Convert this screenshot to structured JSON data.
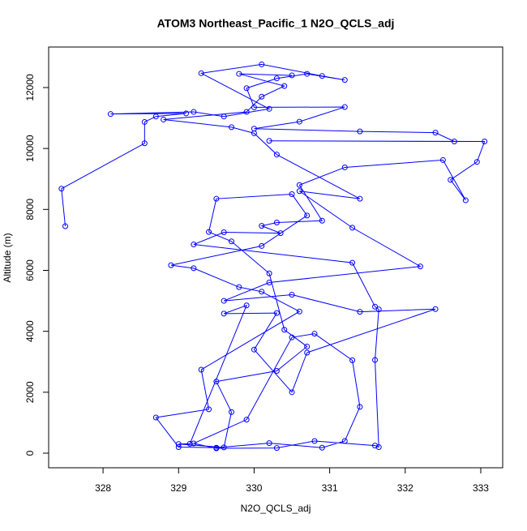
{
  "chart_data": {
    "type": "line",
    "title": "ATOM3 Northeast_Pacific_1 N2O_QCLS_adj",
    "x_label": "N2O_QCLS_adj",
    "y_label": "Altitude (m)",
    "color": "#0000ff",
    "markers": true,
    "x": [
      327.5,
      327.45,
      328.55,
      328.55,
      328.7,
      329.1,
      328.1,
      329.2,
      329.6,
      330.2,
      329.3,
      330.1,
      330.9,
      331.2,
      330.7,
      330.3,
      329.9,
      330.0,
      331.2,
      330.6,
      330.0,
      331.4,
      332.4,
      332.65,
      330.2,
      333.05,
      332.95,
      332.6,
      332.8,
      332.5,
      331.2,
      330.6,
      330.9,
      330.3,
      330.1,
      330.35,
      329.6,
      329.2,
      331.3,
      331.6,
      331.65,
      331.6,
      331.65,
      331.6,
      330.8,
      330.3,
      329.5,
      329.2,
      329.9,
      330.5,
      330.8,
      331.3,
      331.4,
      331.2,
      330.9,
      330.2,
      329.5,
      329.0,
      328.7,
      329.4,
      329.3,
      330.6,
      330.1,
      329.8,
      329.2,
      328.9,
      330.1,
      330.7,
      330.5,
      329.5,
      329.4,
      329.7,
      330.2,
      330.4,
      330.7,
      330.3,
      329.5,
      329.7,
      329.6,
      329.0,
      329.15,
      329.9,
      329.6,
      330.3,
      330.0,
      330.5,
      330.7,
      332.4,
      331.4,
      330.5,
      329.6,
      330.2,
      332.2,
      331.3,
      330.6,
      331.4,
      330.3,
      330.0,
      329.7,
      328.8,
      329.9,
      330.1,
      330.4,
      329.8,
      330.5
    ],
    "values": [
      7450,
      8680,
      10170,
      10870,
      11050,
      11150,
      11130,
      11200,
      11050,
      11300,
      12470,
      12760,
      12380,
      12250,
      12450,
      12300,
      11980,
      11350,
      11360,
      10880,
      10650,
      10560,
      10520,
      10230,
      10250,
      10230,
      9560,
      8970,
      8300,
      9620,
      9380,
      8800,
      7630,
      7570,
      7460,
      7220,
      7250,
      6850,
      6250,
      4810,
      4720,
      3060,
      200,
      250,
      400,
      170,
      160,
      320,
      1100,
      3800,
      3920,
      3050,
      1520,
      400,
      180,
      330,
      180,
      200,
      1170,
      1440,
      2740,
      4650,
      5300,
      5450,
      6070,
      6170,
      6800,
      7800,
      8500,
      8350,
      7260,
      6950,
      5900,
      4050,
      3500,
      2700,
      2350,
      1350,
      190,
      300,
      310,
      4850,
      4580,
      4600,
      3400,
      2000,
      3300,
      4730,
      4640,
      5200,
      5000,
      5600,
      6130,
      7400,
      8600,
      8350,
      9800,
      10500,
      10700,
      10950,
      11200,
      11700,
      12050,
      12450,
      12400
    ],
    "xlim": [
      327.28,
      333.29
    ],
    "ylim": [
      -479,
      13330
    ],
    "xticks": [
      328,
      329,
      330,
      331,
      332,
      333
    ],
    "yticks": [
      0,
      2000,
      4000,
      6000,
      8000,
      10000,
      12000
    ]
  }
}
